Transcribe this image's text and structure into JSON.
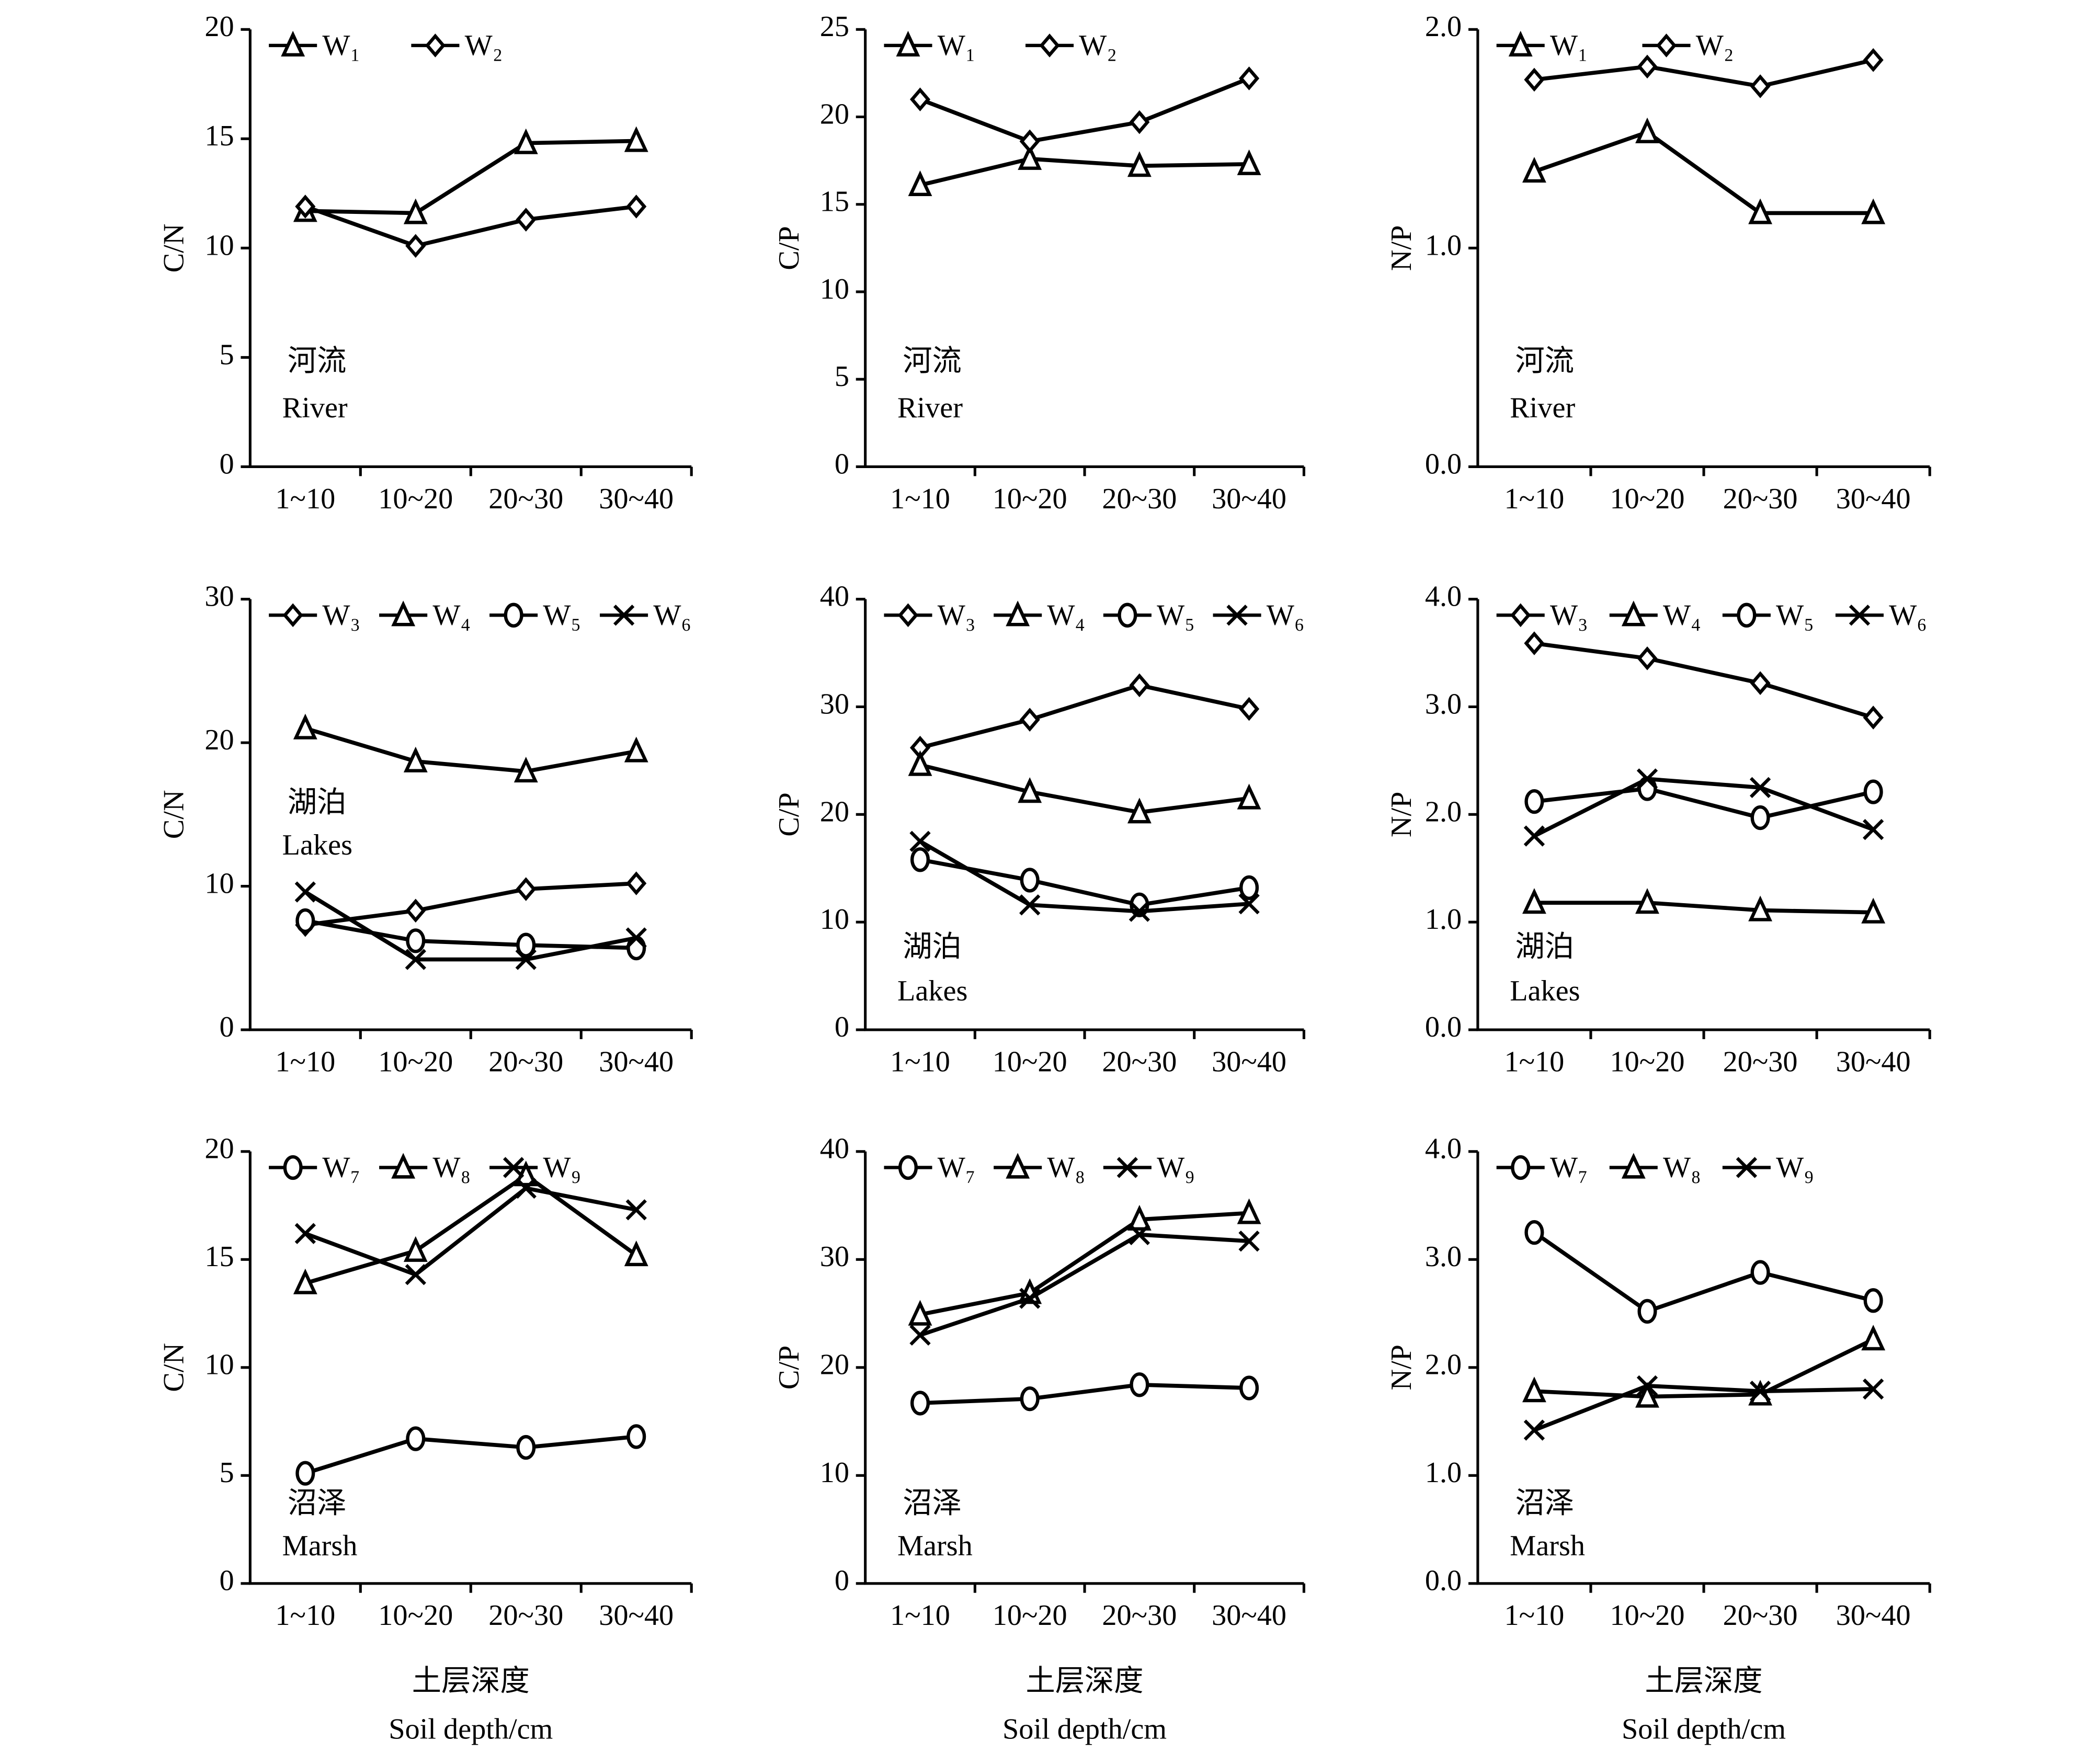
{
  "chart_data": [
    {
      "type": "line",
      "ylabel": "C/N",
      "annotation": [
        "河流",
        "River"
      ],
      "categories": [
        "1~10",
        "10~20",
        "20~30",
        "30~40"
      ],
      "ylim": [
        0,
        20
      ],
      "yticks": [
        0,
        5,
        10,
        15,
        20
      ],
      "series": [
        {
          "name": "W₁",
          "color": "#000000",
          "marker": "triangle",
          "values": [
            11.7,
            11.6,
            14.8,
            14.9
          ]
        },
        {
          "name": "W₂",
          "color": "#000000",
          "marker": "diamond",
          "values": [
            11.9,
            10.1,
            11.3,
            11.9
          ]
        }
      ]
    },
    {
      "type": "line",
      "ylabel": "C/P",
      "annotation": [
        "河流",
        "River"
      ],
      "categories": [
        "1~10",
        "10~20",
        "20~30",
        "30~40"
      ],
      "ylim": [
        0,
        25
      ],
      "yticks": [
        0,
        5,
        10,
        15,
        20,
        25
      ],
      "series": [
        {
          "name": "W₁",
          "color": "#000000",
          "marker": "triangle",
          "values": [
            16.1,
            17.6,
            17.2,
            17.3
          ]
        },
        {
          "name": "W₂",
          "color": "#000000",
          "marker": "diamond",
          "values": [
            21.0,
            18.6,
            19.7,
            22.2
          ]
        }
      ]
    },
    {
      "type": "line",
      "ylabel": "N/P",
      "annotation": [
        "河流",
        "River"
      ],
      "categories": [
        "1~10",
        "10~20",
        "20~30",
        "30~40"
      ],
      "ylim": [
        0,
        2
      ],
      "yticks": [
        {
          "value": 0,
          "label": "0.0"
        },
        {
          "value": 1,
          "label": "1.0"
        },
        {
          "value": 2,
          "label": "2.0"
        }
      ],
      "series": [
        {
          "name": "W₁",
          "color": "#000000",
          "marker": "triangle",
          "values": [
            1.35,
            1.53,
            1.16,
            1.16
          ]
        },
        {
          "name": "W₂",
          "color": "#000000",
          "marker": "diamond",
          "values": [
            1.77,
            1.83,
            1.74,
            1.86
          ]
        }
      ]
    },
    {
      "type": "line",
      "ylabel": "C/N",
      "annotation": [
        "湖泊",
        "Lakes"
      ],
      "categories": [
        "1~10",
        "10~20",
        "20~30",
        "30~40"
      ],
      "ylim": [
        0,
        30
      ],
      "yticks": [
        0,
        10,
        20,
        30
      ],
      "series": [
        {
          "name": "W₃",
          "color": "#000000",
          "marker": "diamond",
          "values": [
            7.3,
            8.3,
            9.8,
            10.2
          ]
        },
        {
          "name": "W₄",
          "color": "#000000",
          "marker": "triangle",
          "values": [
            21.0,
            18.7,
            18.0,
            19.4
          ]
        },
        {
          "name": "W₅",
          "color": "#000000",
          "marker": "circle",
          "values": [
            7.6,
            6.2,
            5.9,
            5.7
          ]
        },
        {
          "name": "W₆",
          "color": "#000000",
          "marker": "cross",
          "values": [
            9.6,
            4.9,
            4.9,
            6.4
          ]
        }
      ]
    },
    {
      "type": "line",
      "ylabel": "C/P",
      "annotation": [
        "湖泊",
        "Lakes"
      ],
      "categories": [
        "1~10",
        "10~20",
        "20~30",
        "30~40"
      ],
      "ylim": [
        0,
        40
      ],
      "yticks": [
        0,
        10,
        20,
        30,
        40
      ],
      "series": [
        {
          "name": "W₃",
          "color": "#000000",
          "marker": "diamond",
          "values": [
            26.2,
            28.8,
            32.0,
            29.8
          ]
        },
        {
          "name": "W₄",
          "color": "#000000",
          "marker": "triangle",
          "values": [
            24.6,
            22.1,
            20.2,
            21.5
          ]
        },
        {
          "name": "W₅",
          "color": "#000000",
          "marker": "circle",
          "values": [
            15.8,
            13.9,
            11.6,
            13.2
          ]
        },
        {
          "name": "W₆",
          "color": "#000000",
          "marker": "cross",
          "values": [
            17.5,
            11.6,
            11.0,
            11.7
          ]
        }
      ]
    },
    {
      "type": "line",
      "ylabel": "N/P",
      "annotation": [
        "湖泊",
        "Lakes"
      ],
      "categories": [
        "1~10",
        "10~20",
        "20~30",
        "30~40"
      ],
      "ylim": [
        0,
        4
      ],
      "yticks": [
        {
          "value": 0,
          "label": "0.0"
        },
        {
          "value": 1,
          "label": "1.0"
        },
        {
          "value": 2,
          "label": "2.0"
        },
        {
          "value": 3,
          "label": "3.0"
        },
        {
          "value": 4,
          "label": "4.0"
        }
      ],
      "series": [
        {
          "name": "W₃",
          "color": "#000000",
          "marker": "diamond",
          "values": [
            3.59,
            3.45,
            3.22,
            2.9
          ]
        },
        {
          "name": "W₄",
          "color": "#000000",
          "marker": "triangle",
          "values": [
            1.18,
            1.18,
            1.11,
            1.09
          ]
        },
        {
          "name": "W₅",
          "color": "#000000",
          "marker": "circle",
          "values": [
            2.12,
            2.24,
            1.97,
            2.21
          ]
        },
        {
          "name": "W₆",
          "color": "#000000",
          "marker": "cross",
          "values": [
            1.8,
            2.33,
            2.25,
            1.86
          ]
        }
      ]
    },
    {
      "type": "line",
      "ylabel": "C/N",
      "annotation": [
        "沼泽",
        "Marsh"
      ],
      "xlabel": [
        "土层深度",
        "Soil depth/cm"
      ],
      "categories": [
        "1~10",
        "10~20",
        "20~30",
        "30~40"
      ],
      "ylim": [
        0,
        20
      ],
      "yticks": [
        0,
        5,
        10,
        15,
        20
      ],
      "series": [
        {
          "name": "W₇",
          "color": "#000000",
          "marker": "circle",
          "values": [
            5.1,
            6.7,
            6.3,
            6.8
          ]
        },
        {
          "name": "W₈",
          "color": "#000000",
          "marker": "triangle",
          "values": [
            13.9,
            15.4,
            18.9,
            15.2
          ]
        },
        {
          "name": "W₉",
          "color": "#000000",
          "marker": "cross",
          "values": [
            16.2,
            14.3,
            18.3,
            17.3
          ]
        }
      ]
    },
    {
      "type": "line",
      "ylabel": "C/P",
      "annotation": [
        "沼泽",
        "Marsh"
      ],
      "xlabel": [
        "土层深度",
        "Soil depth/cm"
      ],
      "categories": [
        "1~10",
        "10~20",
        "20~30",
        "30~40"
      ],
      "ylim": [
        0,
        40
      ],
      "yticks": [
        0,
        10,
        20,
        30,
        40
      ],
      "series": [
        {
          "name": "W₇",
          "color": "#000000",
          "marker": "circle",
          "values": [
            16.7,
            17.1,
            18.4,
            18.1
          ]
        },
        {
          "name": "W₈",
          "color": "#000000",
          "marker": "triangle",
          "values": [
            24.9,
            26.9,
            33.7,
            34.3
          ]
        },
        {
          "name": "W₉",
          "color": "#000000",
          "marker": "cross",
          "values": [
            23.0,
            26.4,
            32.3,
            31.7
          ]
        }
      ]
    },
    {
      "type": "line",
      "ylabel": "N/P",
      "annotation": [
        "沼泽",
        "Marsh"
      ],
      "xlabel": [
        "土层深度",
        "Soil depth/cm"
      ],
      "categories": [
        "1~10",
        "10~20",
        "20~30",
        "30~40"
      ],
      "ylim": [
        0,
        4
      ],
      "yticks": [
        {
          "value": 0,
          "label": "0.0"
        },
        {
          "value": 1,
          "label": "1.0"
        },
        {
          "value": 2,
          "label": "2.0"
        },
        {
          "value": 3,
          "label": "3.0"
        },
        {
          "value": 4,
          "label": "4.0"
        }
      ],
      "series": [
        {
          "name": "W₇",
          "color": "#000000",
          "marker": "circle",
          "values": [
            3.25,
            2.52,
            2.88,
            2.62
          ]
        },
        {
          "name": "W₈",
          "color": "#000000",
          "marker": "triangle",
          "values": [
            1.78,
            1.73,
            1.75,
            2.26
          ]
        },
        {
          "name": "W₉",
          "color": "#000000",
          "marker": "cross",
          "values": [
            1.42,
            1.83,
            1.78,
            1.8
          ]
        }
      ]
    }
  ]
}
